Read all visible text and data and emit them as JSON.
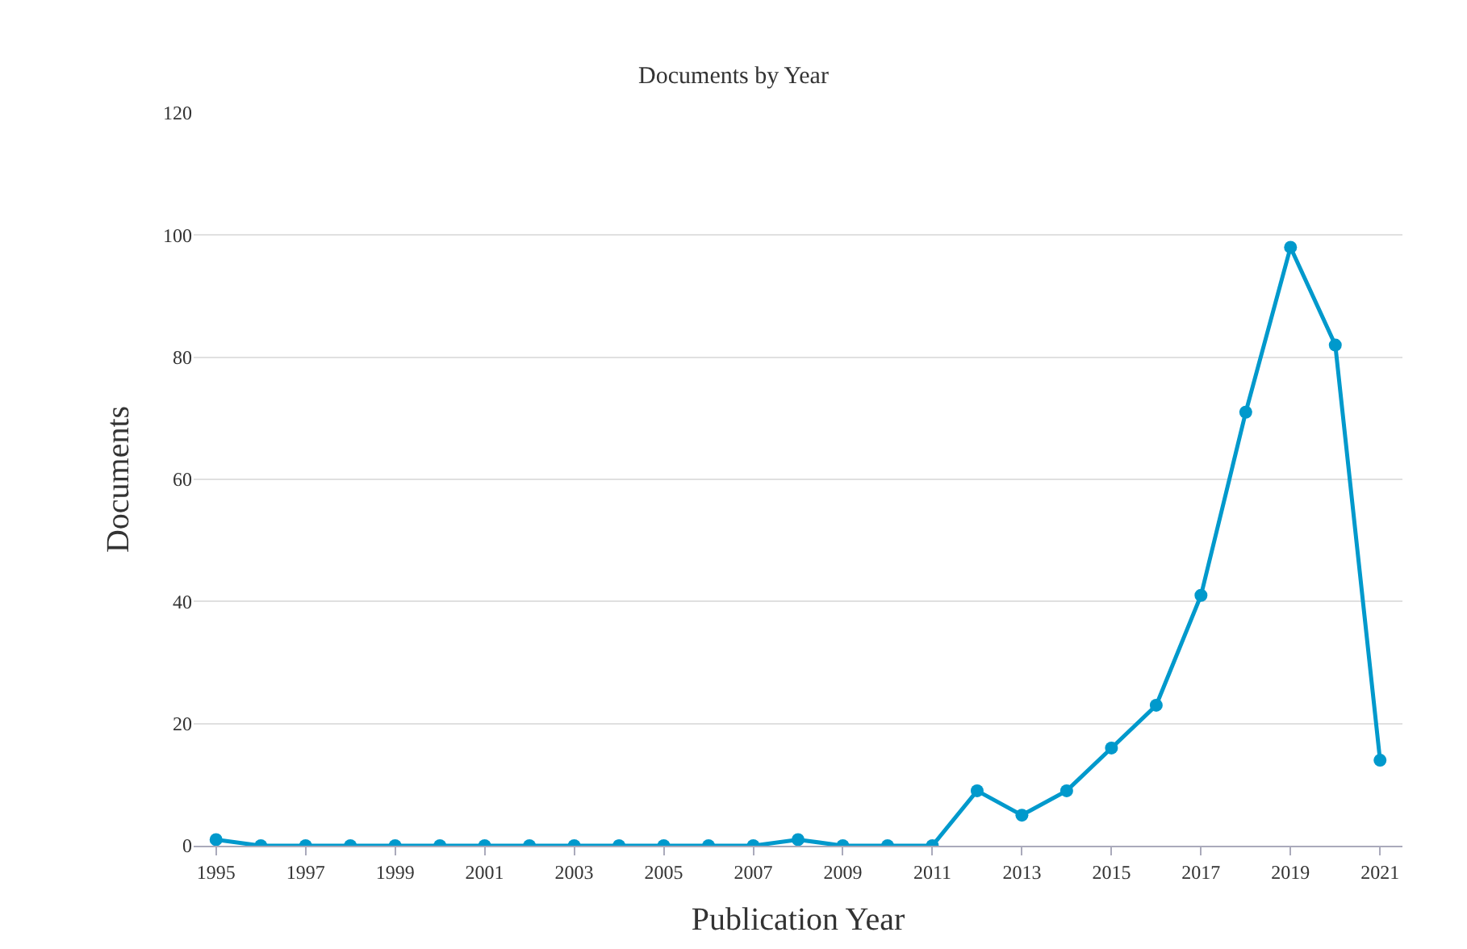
{
  "chart_data": {
    "type": "line",
    "title": "Documents by Year",
    "xlabel": "Publication Year",
    "ylabel": "Documents",
    "x": [
      1995,
      1996,
      1997,
      1998,
      1999,
      2000,
      2001,
      2002,
      2003,
      2004,
      2005,
      2006,
      2007,
      2008,
      2009,
      2010,
      2011,
      2012,
      2013,
      2014,
      2015,
      2016,
      2017,
      2018,
      2019,
      2020,
      2021
    ],
    "values": [
      1,
      0,
      0,
      0,
      0,
      0,
      0,
      0,
      0,
      0,
      0,
      0,
      0,
      1,
      0,
      0,
      0,
      9,
      5,
      9,
      16,
      23,
      41,
      71,
      98,
      82,
      14
    ],
    "color": "#0099cc",
    "marker": "circle",
    "line_style": "solid",
    "grid": "y",
    "legend": false,
    "xlim": [
      1994.5,
      2021.5
    ],
    "xticks": [
      1995,
      1997,
      1999,
      2001,
      2003,
      2005,
      2007,
      2009,
      2011,
      2013,
      2015,
      2017,
      2019,
      2021
    ],
    "ylim": [
      0,
      120
    ],
    "yticks": [
      0,
      20,
      40,
      60,
      80,
      100,
      120
    ]
  }
}
